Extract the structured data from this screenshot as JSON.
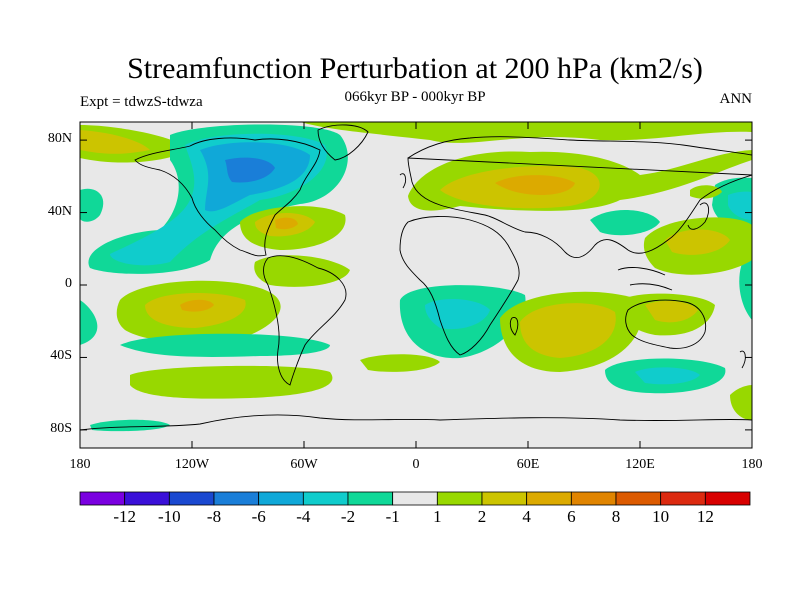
{
  "figure": {
    "title": "Streamfunction Perturbation at 200 hPa (km2/s)",
    "subtitle": "066kyr BP - 000kyr BP",
    "left_label": "Expt = tdwzS-tdwza",
    "right_label": "ANN"
  },
  "colors": {
    "background": "#e8e8e8",
    "coast": "#000000",
    "palette": [
      "#7a00e0",
      "#3a10d8",
      "#1a48d0",
      "#1a7ed8",
      "#10a8d8",
      "#10cccc",
      "#10d898",
      "#e8e8e8",
      "#98d800",
      "#ccc400",
      "#dcaa00",
      "#e08400",
      "#dc5a00",
      "#dc2a10",
      "#d80000"
    ]
  },
  "chart_data": {
    "type": "heatmap",
    "projection": "cylindrical equidistant",
    "x_axis": {
      "range": [
        -180,
        180
      ],
      "ticks": [
        -180,
        -120,
        -60,
        0,
        60,
        120,
        180
      ],
      "tick_labels": [
        "180",
        "120W",
        "60W",
        "0",
        "60E",
        "120E",
        "180"
      ]
    },
    "y_axis": {
      "range": [
        -90,
        90
      ],
      "ticks": [
        80,
        40,
        0,
        -40,
        -80
      ],
      "tick_labels": [
        "80N",
        "40N",
        "0",
        "40S",
        "80S"
      ]
    },
    "colorbar": {
      "levels": [
        -12,
        -10,
        -8,
        -6,
        -4,
        -2,
        -1,
        1,
        2,
        4,
        6,
        8,
        10,
        12
      ],
      "level_labels": [
        "-12",
        "-10",
        "-8",
        "-6",
        "-4",
        "-2",
        "-1",
        "1",
        "2",
        "4",
        "6",
        "8",
        "10",
        "12"
      ]
    },
    "anomalies_approx": [
      {
        "name": "",
        "lon": -95,
        "lat": 55,
        "value": -5
      },
      {
        "name": "",
        "lon": 60,
        "lat": 50,
        "value": 5
      },
      {
        "name": "",
        "lon": -75,
        "lat": 30,
        "value": 4
      },
      {
        "name": "",
        "lon": -125,
        "lat": -15,
        "value": 4
      },
      {
        "name": "",
        "lon": 80,
        "lat": -25,
        "value": 3
      },
      {
        "name": "",
        "lon": 15,
        "lat": -15,
        "value": -3
      },
      {
        "name": "",
        "lon": 125,
        "lat": -50,
        "value": -3
      },
      {
        "name": "",
        "lon": 140,
        "lat": 25,
        "value": 3
      },
      {
        "name": "",
        "lon": 130,
        "lat": -20,
        "value": 2
      },
      {
        "name": "",
        "lon": -155,
        "lat": 70,
        "value": 2
      }
    ]
  }
}
